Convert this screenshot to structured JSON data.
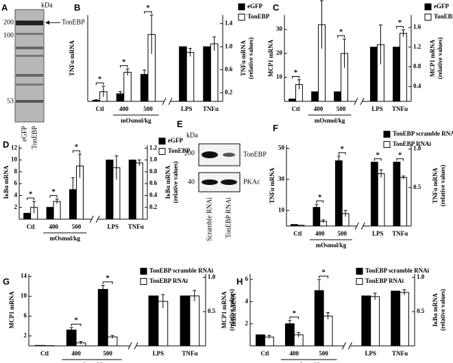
{
  "chart_data": [
    {
      "type": "bar",
      "panel": "B",
      "ylabel": "TNFα mRNA",
      "y2label": [
        "TNFα mRNA",
        "(relative values)"
      ],
      "group_label": "mOsmol/kg",
      "categories": [
        "Ctl",
        "400",
        "500",
        "LPS",
        "TNFα"
      ],
      "ylim": [
        0,
        80
      ],
      "y2lim": [
        0.05,
        1.55
      ],
      "y2ticks": [
        0.2,
        0.6,
        {
          "value": 1,
          "label": "1.0"
        },
        1.4
      ],
      "significance": [
        "*",
        "*",
        "*",
        null,
        null
      ],
      "series": [
        {
          "name": "eGFP",
          "color": "#000000",
          "values": [
            1,
            7,
            25,
            null,
            null
          ],
          "errors": [
            0.5,
            2,
            4,
            null,
            null
          ]
        },
        {
          "name": "TonEBP",
          "color": "#ffffff",
          "values": [
            9,
            27,
            62,
            null,
            null
          ],
          "errors": [
            5,
            3,
            18,
            null,
            null
          ]
        },
        {
          "color": "#000000",
          "axis": "y2",
          "values": [
            null,
            null,
            null,
            1.0,
            1.0
          ],
          "errors": [
            null,
            null,
            null,
            null,
            null
          ]
        },
        {
          "color": "#ffffff",
          "axis": "y2",
          "values": [
            null,
            null,
            null,
            0.9,
            1.05
          ],
          "errors": [
            null,
            null,
            null,
            0.07,
            0.12
          ]
        }
      ]
    },
    {
      "type": "bar",
      "panel": "C",
      "ylabel": "MCP1 mRNA",
      "y2label": [
        "MCP1 mRNA",
        "(relative values)"
      ],
      "group_label": "mOsmol/kg",
      "categories": [
        "Ctl",
        "400",
        "500",
        "LPS",
        "TNFα"
      ],
      "ylim": [
        0,
        36
      ],
      "y2lim": [
        0.1,
        1.85
      ],
      "yticks": [
        10,
        20,
        30
      ],
      "y2ticks": [
        0.4,
        0.8,
        1.2,
        1.6
      ],
      "significance": [
        "*",
        "*",
        "*",
        null,
        "*"
      ],
      "series": [
        {
          "name": "eGFP",
          "color": "#000000",
          "values": [
            1,
            4,
            4,
            null,
            null
          ],
          "errors": [
            null,
            null,
            null,
            null,
            null
          ]
        },
        {
          "name": "TonEBP",
          "color": "#ffffff",
          "values": [
            7,
            32,
            20,
            null,
            null
          ],
          "errors": [
            2,
            10,
            6,
            null,
            null
          ]
        },
        {
          "color": "#000000",
          "axis": "y2",
          "values": [
            null,
            null,
            null,
            1.2,
            1.2
          ],
          "errors": [
            null,
            null,
            null,
            null,
            null
          ]
        },
        {
          "color": "#ffffff",
          "axis": "y2",
          "values": [
            null,
            null,
            null,
            1.25,
            1.48
          ],
          "errors": [
            null,
            null,
            null,
            0.4,
            0.07
          ]
        }
      ]
    },
    {
      "type": "bar",
      "panel": "D",
      "ylabel": "IκBα mRNA",
      "y2label": [
        "IκBα mRNA",
        "(relative values)"
      ],
      "group_label": "mOsmol/kg",
      "categories": [
        "Ctl",
        "400",
        "500",
        "LPS",
        "TNFα"
      ],
      "ylim": [
        0,
        12.5
      ],
      "y2lim": [
        0,
        1.25
      ],
      "yticks": [
        2,
        4,
        6,
        8,
        10,
        12
      ],
      "y2ticks": [
        0.2,
        0.4,
        0.6,
        0.8,
        {
          "value": 1,
          "label": "1.0"
        },
        1.2
      ],
      "significance": [
        "*",
        "*",
        "*",
        null,
        null
      ],
      "series": [
        {
          "name": "eGFP",
          "color": "#000000",
          "values": [
            1,
            2,
            5,
            null,
            null
          ],
          "errors": [
            null,
            null,
            2,
            null,
            null
          ]
        },
        {
          "name": "TonEBP",
          "color": "#ffffff",
          "values": [
            2,
            3,
            9,
            null,
            null
          ],
          "errors": [
            1,
            0.4,
            2,
            null,
            null
          ]
        },
        {
          "color": "#000000",
          "axis": "y2",
          "values": [
            null,
            null,
            null,
            1.0,
            1.0
          ],
          "errors": [
            null,
            null,
            null,
            null,
            null
          ]
        },
        {
          "color": "#ffffff",
          "axis": "y2",
          "values": [
            null,
            null,
            null,
            0.87,
            0.95
          ],
          "errors": [
            null,
            null,
            null,
            0.2,
            0.05
          ]
        }
      ]
    },
    {
      "type": "bar",
      "panel": "F",
      "ylabel": "TNFα mRNA",
      "y2label": [
        "TNFα mRNA",
        "(relative values)"
      ],
      "group_label": "mOsmol/kg",
      "categories": [
        "Ctl",
        "400",
        "500",
        "LPS",
        "TNFα"
      ],
      "ylim": [
        0,
        52
      ],
      "y2lim": [
        0,
        1.05
      ],
      "yticks": [
        10,
        30,
        50
      ],
      "y2ticks": [
        0.5,
        {
          "value": 1,
          "label": "1.0"
        }
      ],
      "significance": [
        null,
        "*",
        "*",
        "*",
        "*"
      ],
      "series": [
        {
          "name": "TonEBP scramble RNAi",
          "color": "#000000",
          "values": [
            1,
            12,
            42,
            null,
            null
          ],
          "errors": [
            null,
            2,
            3,
            null,
            null
          ]
        },
        {
          "name": "TonEBP RNAi",
          "color": "#ffffff",
          "values": [
            0.5,
            3,
            8,
            null,
            null
          ],
          "errors": [
            null,
            1,
            2,
            null,
            null
          ]
        },
        {
          "color": "#000000",
          "axis": "y2",
          "values": [
            null,
            null,
            null,
            0.83,
            0.83
          ],
          "errors": [
            null,
            null,
            null,
            null,
            null
          ]
        },
        {
          "color": "#ffffff",
          "axis": "y2",
          "values": [
            null,
            null,
            null,
            0.68,
            0.63
          ],
          "errors": [
            null,
            null,
            null,
            0.05,
            0.02
          ]
        }
      ]
    },
    {
      "type": "bar",
      "panel": "G",
      "ylabel": "MCP1 mRNA",
      "y2label": [
        "MCP1 mRNA",
        "(relative values)"
      ],
      "group_label": "mOsmol/kg",
      "categories": [
        "Ctl",
        "400",
        "500",
        "LPS",
        "TNFα"
      ],
      "ylim": [
        0,
        14.5
      ],
      "y2lim": [
        0,
        1.05
      ],
      "yticks": [
        2,
        6,
        10,
        14
      ],
      "y2ticks": [
        0.5,
        {
          "value": 1,
          "label": "1.0"
        }
      ],
      "significance": [
        null,
        "*",
        "*",
        null,
        null
      ],
      "series": [
        {
          "name": "TonEBP scramble RNAi",
          "color": "#000000",
          "values": [
            0.1,
            3.2,
            11.4,
            null,
            null
          ],
          "errors": [
            null,
            0.5,
            0.8,
            null,
            null
          ]
        },
        {
          "name": "TonEBP RNAi",
          "color": "#ffffff",
          "values": [
            0.05,
            0.6,
            1.8,
            null,
            null
          ],
          "errors": [
            null,
            0.3,
            0.3,
            null,
            null
          ]
        },
        {
          "color": "#000000",
          "axis": "y2",
          "values": [
            null,
            null,
            null,
            0.73,
            0.73
          ],
          "errors": [
            null,
            null,
            null,
            null,
            null
          ]
        },
        {
          "color": "#ffffff",
          "axis": "y2",
          "values": [
            null,
            null,
            null,
            0.65,
            0.73
          ],
          "errors": [
            null,
            null,
            null,
            0.1,
            0.08
          ]
        }
      ]
    },
    {
      "type": "bar",
      "panel": "H",
      "ylabel": "IκBα mRNA",
      "y2label": [
        "IκBα mRNA",
        "(relative values)"
      ],
      "group_label": "mOsmol/kg",
      "categories": [
        "Ctl",
        "400",
        "500",
        "LPS",
        "TNFα"
      ],
      "ylim": [
        0,
        6.5
      ],
      "y2lim": [
        0,
        1.05
      ],
      "yticks": [
        2,
        4,
        6
      ],
      "y2ticks": [
        0.5,
        {
          "value": 1,
          "label": "1.0"
        }
      ],
      "significance": [
        null,
        "*",
        "*",
        null,
        null
      ],
      "series": [
        {
          "name": "TonEBP scramble RNAi",
          "color": "#000000",
          "values": [
            1.0,
            2.0,
            5.0,
            null,
            null
          ],
          "errors": [
            null,
            0.3,
            1.0,
            null,
            null
          ]
        },
        {
          "name": "TonEBP RNAi",
          "color": "#ffffff",
          "values": [
            0.8,
            1.0,
            2.7,
            null,
            null
          ],
          "errors": [
            0.15,
            0.2,
            0.3,
            null,
            null
          ]
        },
        {
          "color": "#000000",
          "axis": "y2",
          "values": [
            null,
            null,
            null,
            0.73,
            0.8
          ],
          "errors": [
            null,
            null,
            null,
            null,
            null
          ]
        },
        {
          "color": "#ffffff",
          "axis": "y2",
          "values": [
            null,
            null,
            null,
            0.72,
            0.78
          ],
          "errors": [
            null,
            null,
            null,
            0.05,
            0.04
          ]
        }
      ]
    }
  ],
  "blots": [
    {
      "panel": "A",
      "unit": "kDa",
      "markers": [
        200,
        100,
        53
      ],
      "band_label": "TonEBP",
      "lanes": [
        "eGFP",
        "TonEBP"
      ]
    },
    {
      "panel": "E",
      "unit": "kDa",
      "markers": [
        200,
        40
      ],
      "bands": [
        "TonEBP",
        "PKAc"
      ],
      "lanes": [
        "Scramble RNAi",
        "TonEBP RNAi"
      ]
    }
  ]
}
